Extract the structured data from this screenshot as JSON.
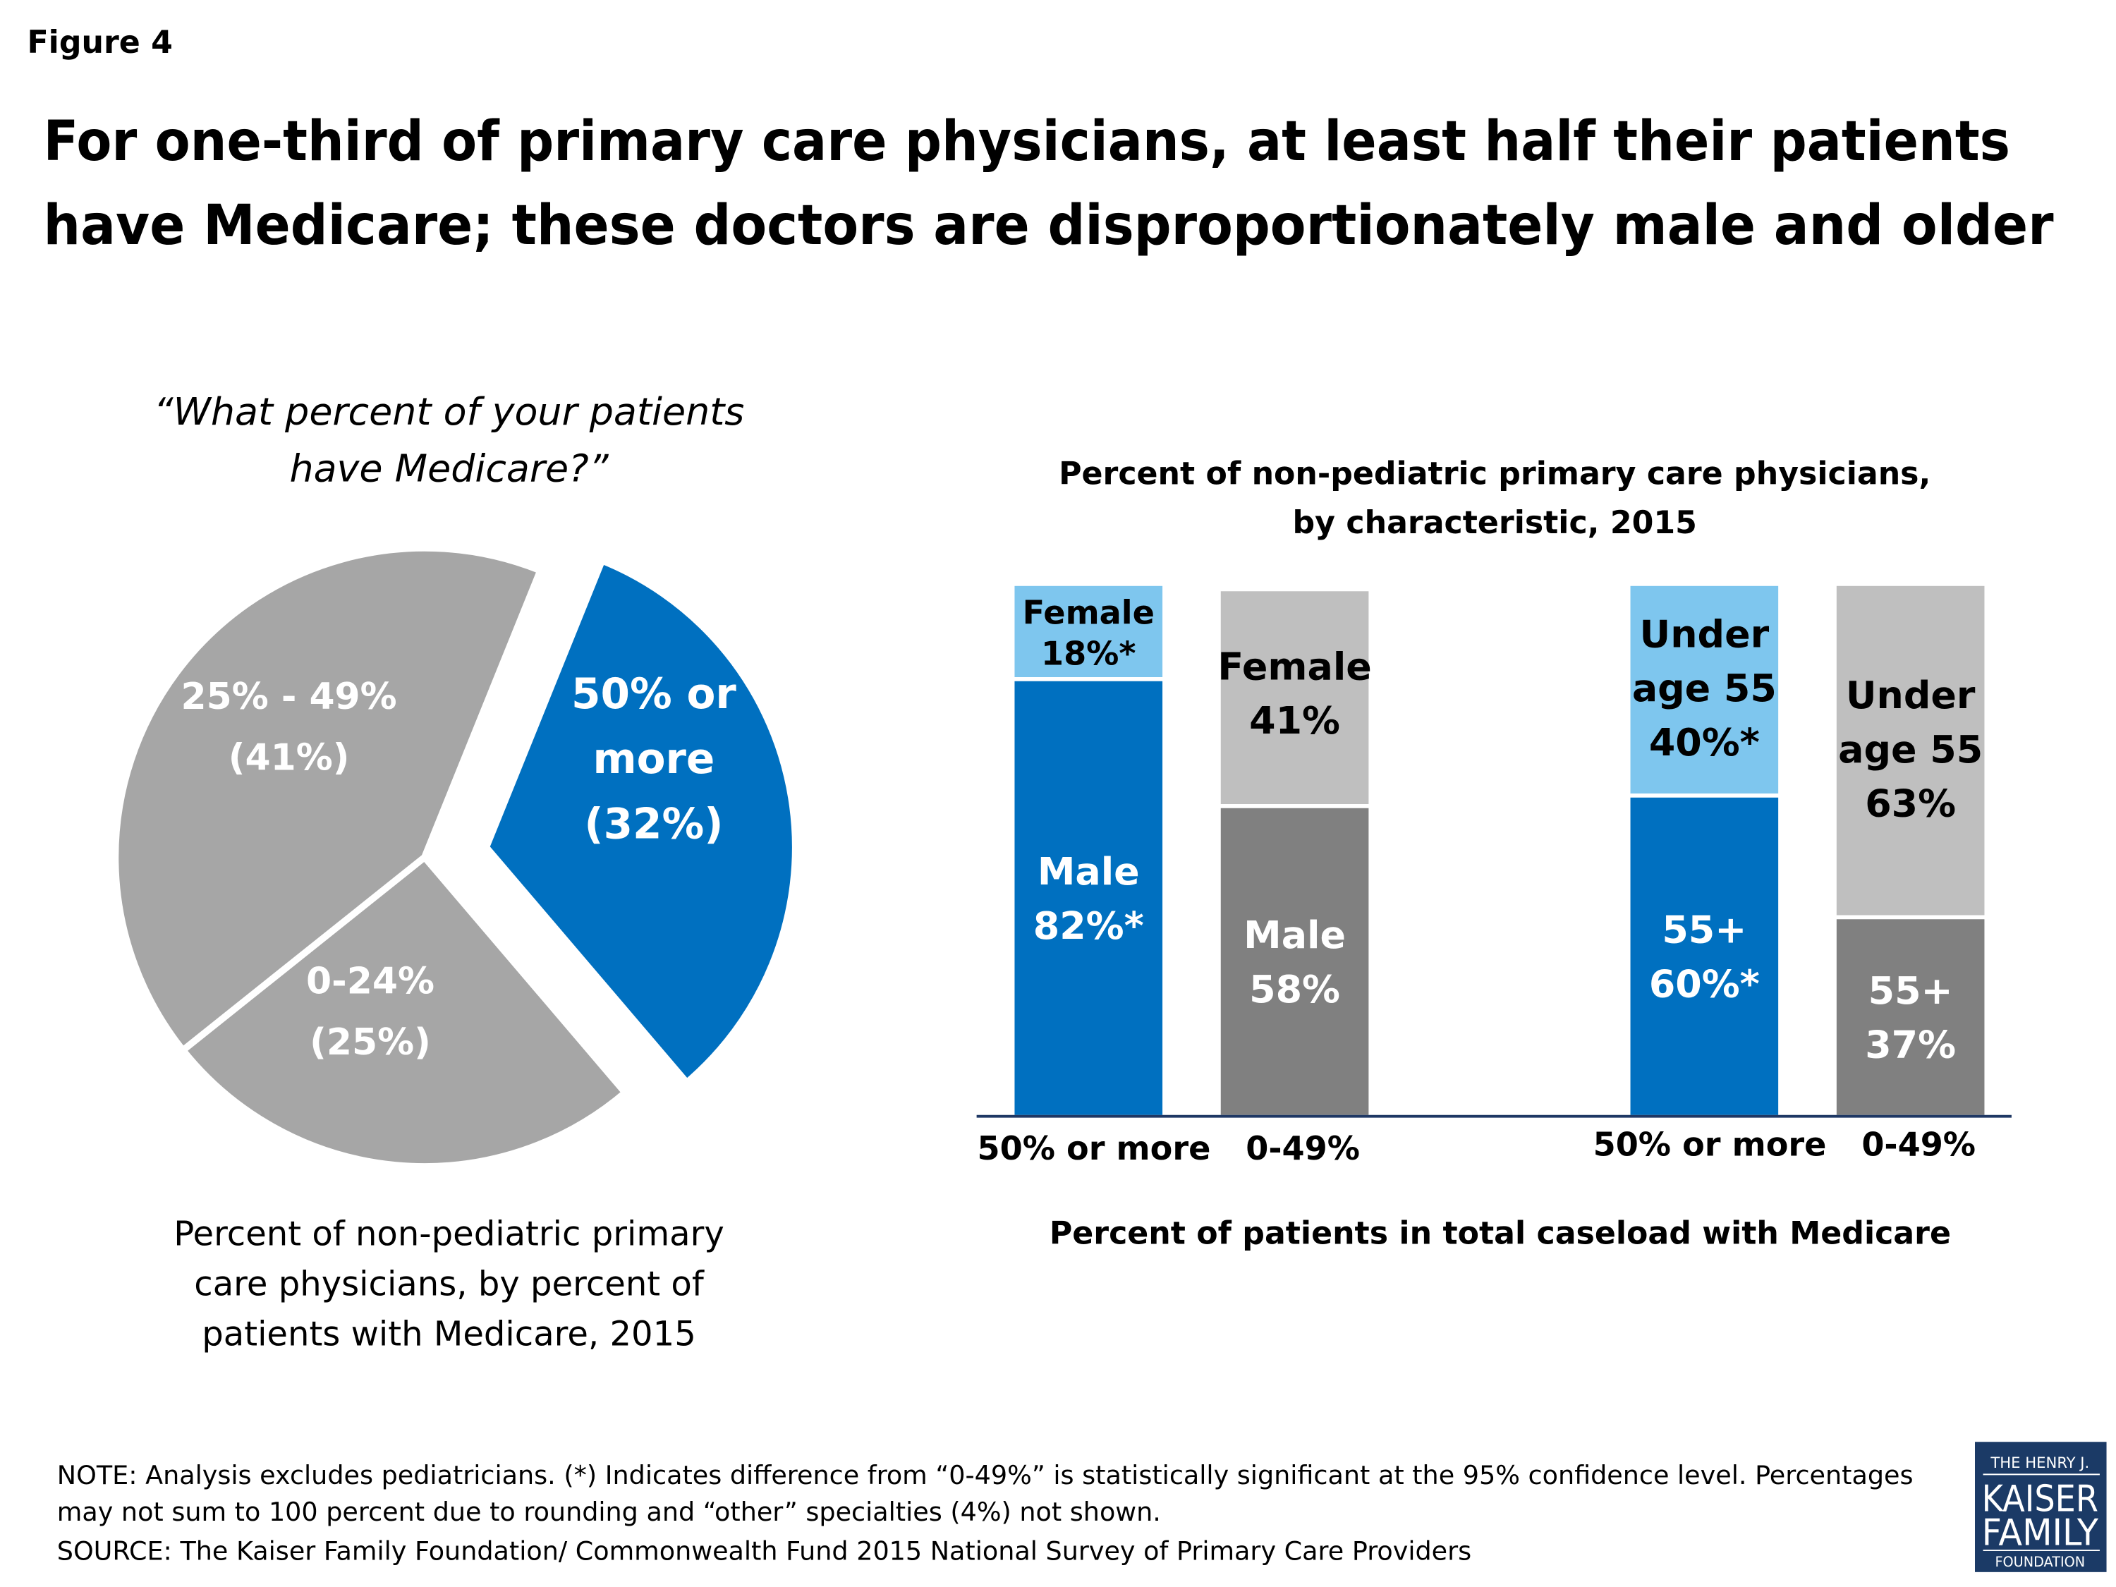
{
  "figure_label": "Figure 4",
  "title_lines": [
    "For one-third of primary care physicians, at least half their patients",
    "have Medicare; these doctors are disproportionately male and older"
  ],
  "colors": {
    "blue": "#0070C0",
    "light_blue": "#7EC6EE",
    "grey_pie": "#A6A6A6",
    "light_grey": "#BFBFBF",
    "dark_grey": "#808080",
    "axis": "#1F3864",
    "logo_bg": "#1B3A66"
  },
  "chart_data": [
    {
      "type": "pie",
      "question_lines": [
        "“What percent of your patients",
        "have Medicare?”"
      ],
      "caption_lines": [
        "Percent of non-pediatric primary",
        "care physicians, by percent of",
        "patients with Medicare, 2015"
      ],
      "slices": [
        {
          "label_lines": [
            "50% or",
            "more",
            "(32%)"
          ],
          "value": 32,
          "color": "#0070C0",
          "exploded": true
        },
        {
          "label_lines": [
            "0-24%",
            "(25%)"
          ],
          "value": 25,
          "color": "#A6A6A6",
          "exploded": false
        },
        {
          "label_lines": [
            "25% - 49%",
            "(41%)"
          ],
          "value": 41,
          "color": "#A6A6A6",
          "exploded": false
        }
      ]
    },
    {
      "type": "bar",
      "stacked": true,
      "title_lines": [
        "Percent of non-pediatric primary care physicians,",
        "by characteristic, 2015"
      ],
      "xlabel": "Percent of patients in total caseload with Medicare",
      "categories": [
        "50% or more",
        "0-49%",
        "50% or more",
        "0-49%"
      ],
      "ylim": [
        0,
        100
      ],
      "bars": [
        {
          "segments": [
            {
              "label_lines": [
                "Male",
                "82%*"
              ],
              "value": 82,
              "color": "#0070C0"
            },
            {
              "label_lines": [
                "Female",
                "18%*"
              ],
              "value": 18,
              "color": "#7EC6EE"
            }
          ]
        },
        {
          "segments": [
            {
              "label_lines": [
                "Male",
                "58%"
              ],
              "value": 58,
              "color": "#808080"
            },
            {
              "label_lines": [
                "Female",
                "41%"
              ],
              "value": 41,
              "color": "#BFBFBF"
            }
          ]
        },
        {
          "segments": [
            {
              "label_lines": [
                "55+",
                "60%*"
              ],
              "value": 60,
              "color": "#0070C0"
            },
            {
              "label_lines": [
                "Under",
                "age 55",
                "40%*"
              ],
              "value": 40,
              "color": "#7EC6EE"
            }
          ]
        },
        {
          "segments": [
            {
              "label_lines": [
                "55+",
                "37%"
              ],
              "value": 37,
              "color": "#808080"
            },
            {
              "label_lines": [
                "Under",
                "age 55",
                "63%"
              ],
              "value": 63,
              "color": "#BFBFBF"
            }
          ]
        }
      ]
    }
  ],
  "notes_lines": [
    "NOTE: Analysis excludes pediatricians. (*) Indicates difference from “0-49%” is statistically significant at the 95% confidence level. Percentages",
    "may not sum to 100 percent due to rounding and “other” specialties (4%) not shown.",
    "SOURCE: The Kaiser Family Foundation/ Commonwealth Fund 2015 National Survey of Primary Care Providers"
  ],
  "logo": {
    "lines": [
      "THE HENRY J.",
      "KAISER",
      "FAMILY",
      "FOUNDATION"
    ]
  }
}
